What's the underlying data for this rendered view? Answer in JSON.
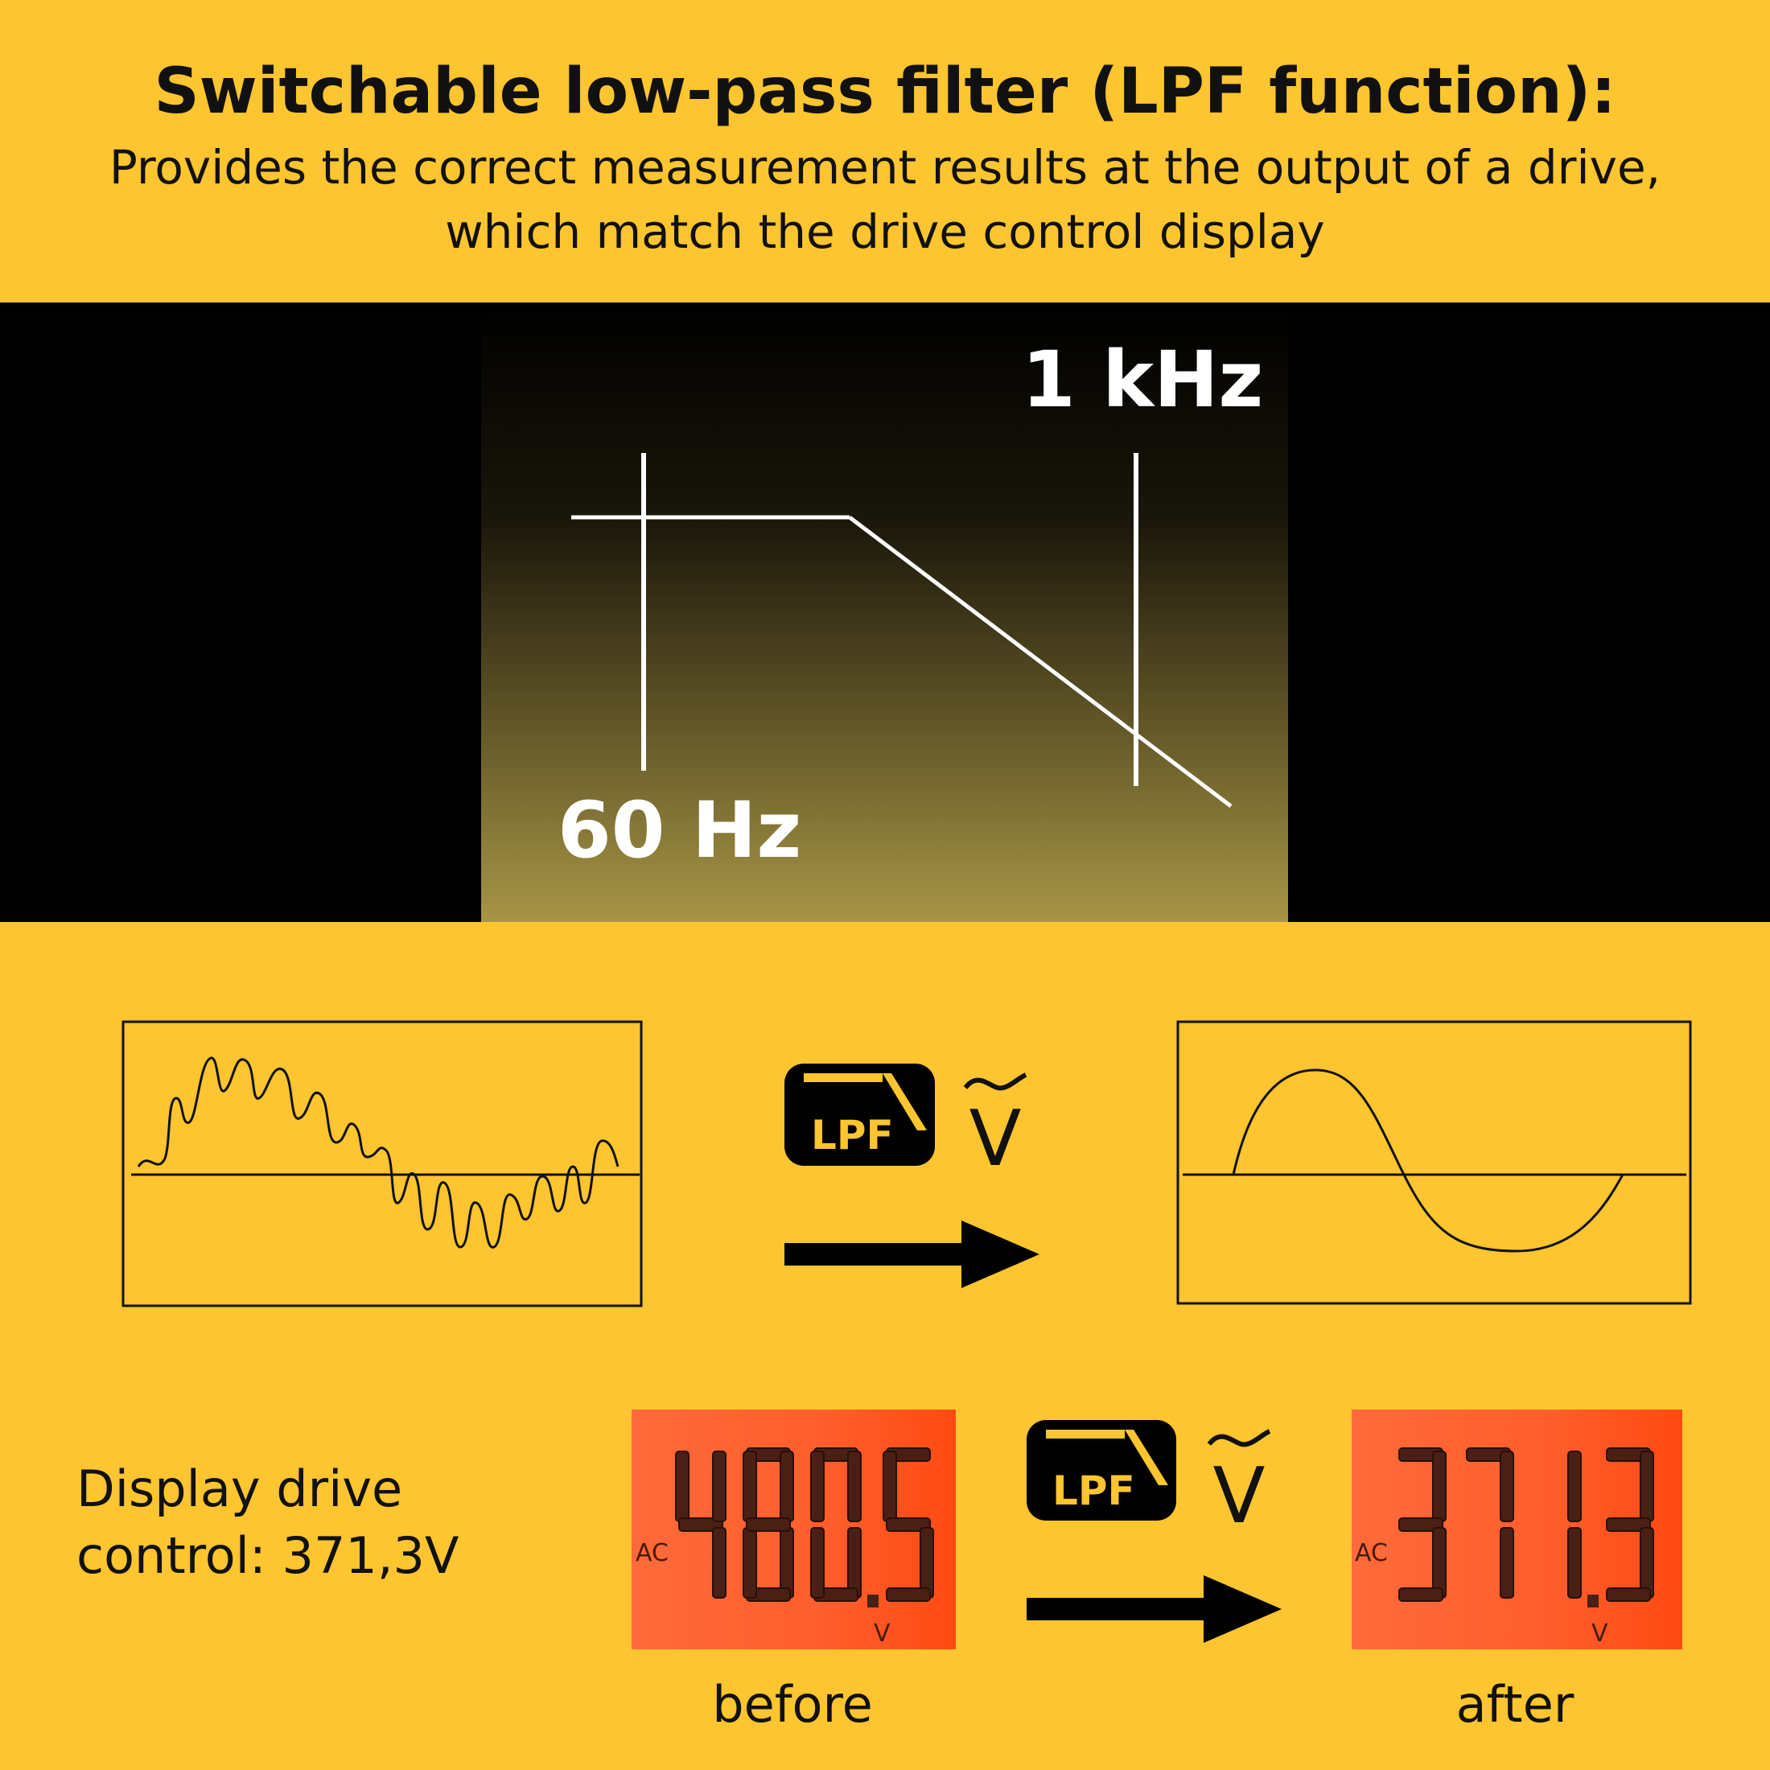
{
  "header": {
    "title": "Switchable low-pass filter (LPF function):",
    "subtitle_line1": "Provides the correct measurement results at the output of a drive,",
    "subtitle_line2": "which match the drive control display"
  },
  "filter_diagram": {
    "label_low": "60 Hz",
    "label_high": "1 kHz"
  },
  "waveforms": {
    "badge_label": "LPF",
    "unit_symbol": "V",
    "ac_symbol": "~"
  },
  "display_section": {
    "text_line1": "Display drive",
    "text_line2": "control: 371,3V",
    "before": {
      "reading": "480.5",
      "mode": "AC",
      "unit": "V",
      "caption": "before"
    },
    "after": {
      "reading": "371.3",
      "mode": "AC",
      "unit": "V",
      "caption": "after"
    },
    "badge_label": "LPF",
    "unit_symbol": "V"
  },
  "colors": {
    "background": "#FDC52F",
    "band": "#000000",
    "lcd": "#FF6A33",
    "lcd_segment": "#4A2015"
  }
}
